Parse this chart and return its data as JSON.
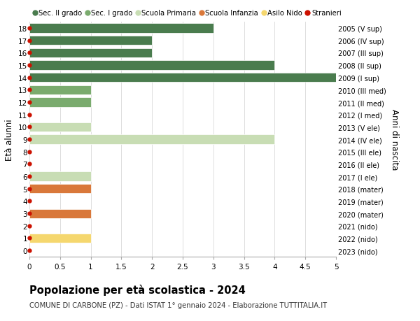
{
  "ages": [
    18,
    17,
    16,
    15,
    14,
    13,
    12,
    11,
    10,
    9,
    8,
    7,
    6,
    5,
    4,
    3,
    2,
    1,
    0
  ],
  "years": [
    "2005 (V sup)",
    "2006 (IV sup)",
    "2007 (III sup)",
    "2008 (II sup)",
    "2009 (I sup)",
    "2010 (III med)",
    "2011 (II med)",
    "2012 (I med)",
    "2013 (V ele)",
    "2014 (IV ele)",
    "2015 (III ele)",
    "2016 (II ele)",
    "2017 (I ele)",
    "2018 (mater)",
    "2019 (mater)",
    "2020 (mater)",
    "2021 (nido)",
    "2022 (nido)",
    "2023 (nido)"
  ],
  "bars": [
    {
      "age": 18,
      "value": 3.0,
      "color": "#4a7c4e"
    },
    {
      "age": 17,
      "value": 2.0,
      "color": "#4a7c4e"
    },
    {
      "age": 16,
      "value": 2.0,
      "color": "#4a7c4e"
    },
    {
      "age": 15,
      "value": 4.0,
      "color": "#4a7c4e"
    },
    {
      "age": 14,
      "value": 5.0,
      "color": "#4a7c4e"
    },
    {
      "age": 13,
      "value": 1.0,
      "color": "#7aab6e"
    },
    {
      "age": 12,
      "value": 1.0,
      "color": "#7aab6e"
    },
    {
      "age": 11,
      "value": 0.0,
      "color": "#7aab6e"
    },
    {
      "age": 10,
      "value": 1.0,
      "color": "#c8ddb4"
    },
    {
      "age": 9,
      "value": 4.0,
      "color": "#c8ddb4"
    },
    {
      "age": 8,
      "value": 0.0,
      "color": "#c8ddb4"
    },
    {
      "age": 7,
      "value": 0.0,
      "color": "#c8ddb4"
    },
    {
      "age": 6,
      "value": 1.0,
      "color": "#c8ddb4"
    },
    {
      "age": 5,
      "value": 1.0,
      "color": "#d9783a"
    },
    {
      "age": 4,
      "value": 0.0,
      "color": "#d9783a"
    },
    {
      "age": 3,
      "value": 1.0,
      "color": "#d9783a"
    },
    {
      "age": 2,
      "value": 0.0,
      "color": "#f5d76e"
    },
    {
      "age": 1,
      "value": 1.0,
      "color": "#f5d76e"
    },
    {
      "age": 0,
      "value": 0.0,
      "color": "#f5d76e"
    }
  ],
  "legend_categories": [
    {
      "label": "Sec. II grado",
      "color": "#4a7c4e",
      "type": "patch"
    },
    {
      "label": "Sec. I grado",
      "color": "#7aab6e",
      "type": "patch"
    },
    {
      "label": "Scuola Primaria",
      "color": "#c8ddb4",
      "type": "patch"
    },
    {
      "label": "Scuola Infanzia",
      "color": "#d9783a",
      "type": "patch"
    },
    {
      "label": "Asilo Nido",
      "color": "#f5d76e",
      "type": "patch"
    },
    {
      "label": "Stranieri",
      "color": "#cc1100",
      "type": "dot"
    }
  ],
  "ylabel_left": "Età alunni",
  "ylabel_right": "Anni di nascita",
  "xlim": [
    0,
    5.0
  ],
  "xticks": [
    0,
    0.5,
    1.0,
    1.5,
    2.0,
    2.5,
    3.0,
    3.5,
    4.0,
    4.5,
    5.0
  ],
  "title": "Popolazione per età scolastica - 2024",
  "subtitle": "COMUNE DI CARBONE (PZ) - Dati ISTAT 1° gennaio 2024 - Elaborazione TUTTITALIA.IT",
  "background_color": "#ffffff",
  "grid_color": "#dddddd",
  "bar_height": 0.75,
  "stranieri_color": "#cc1100"
}
